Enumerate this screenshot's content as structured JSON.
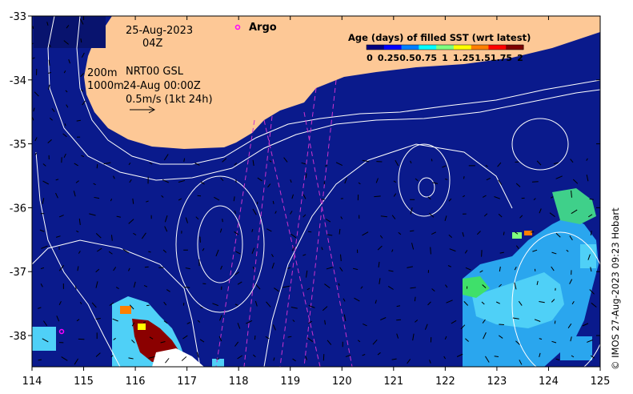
{
  "map": {
    "date": "25-Aug-2023",
    "time": "04Z",
    "argo_label": "Argo",
    "depth_200": "200m",
    "depth_1000": "1000m",
    "product": "NRT00 GSL",
    "product_time": "24-Aug 00:00Z",
    "scale_label": "0.5m/s (1kt 24h)",
    "x_ticks": [
      "114",
      "115",
      "116",
      "117",
      "118",
      "119",
      "120",
      "121",
      "122",
      "123",
      "124",
      "125"
    ],
    "y_ticks": [
      "-33",
      "-34",
      "-35",
      "-36",
      "-37",
      "-38"
    ],
    "colorbar": {
      "title": "Age (days) of filled SST (wrt latest)",
      "ticks": [
        "0",
        "0.25",
        "0.5",
        "0.75",
        "1",
        "1.25",
        "1.5",
        "1.75",
        "2"
      ],
      "colors": [
        "#00007f",
        "#0000ff",
        "#007fff",
        "#00ffff",
        "#7fff7f",
        "#ffff00",
        "#ff7f00",
        "#ff0000",
        "#7f0000"
      ]
    },
    "copyright": "© IMOS 27-Aug-2023 09:23 Hobart",
    "colors": {
      "ocean": "#0a1a8c",
      "land": "#fdc896",
      "argo": "#ff00ff",
      "track": "#cc33cc"
    }
  }
}
